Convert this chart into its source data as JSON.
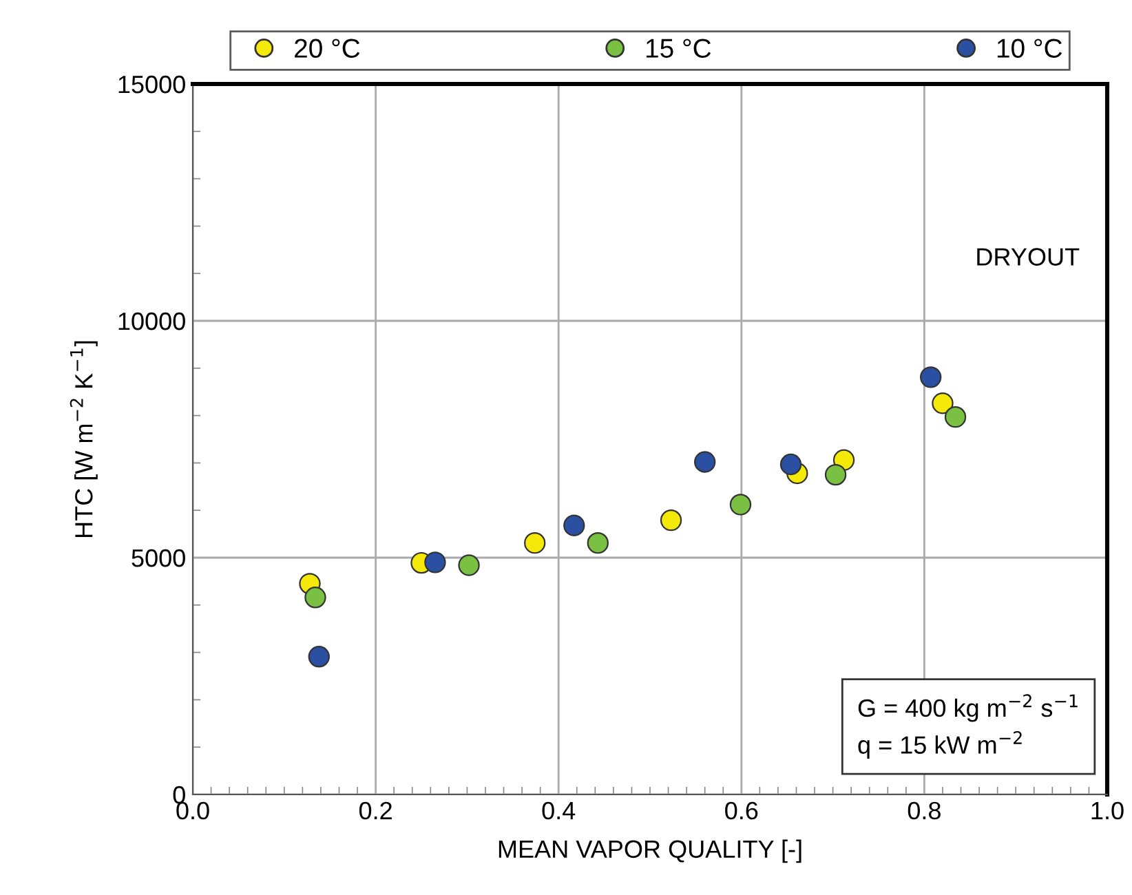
{
  "chart_data": {
    "type": "scatter",
    "xlabel": "MEAN VAPOR QUALITY [-]",
    "ylabel": "HTC [W m$^{−2}$ K$^{−1}$]",
    "xlim": [
      0,
      1
    ],
    "xticks": [
      {
        "value": 0,
        "label": "0.0"
      },
      0.2,
      0.4,
      0.6,
      0.8,
      {
        "value": 1,
        "label": "1.0"
      }
    ],
    "ylim": [
      0,
      15000
    ],
    "yticks": [
      0,
      5000,
      10000,
      15000
    ],
    "grid": true,
    "legend": "top",
    "marker": "circle",
    "annotations": [
      "DRYOUT",
      "G = 400 kg m$^{−2}$ s$^{−1}$\nq = 15 kW m$^{−2}$"
    ],
    "series": [
      {
        "name": "20 °C",
        "color": "#f5e90a",
        "x": [
          0.128,
          0.25,
          0.374,
          0.523,
          0.661,
          0.712,
          0.82
        ],
        "values": [
          4450,
          4890,
          5310,
          5790,
          6780,
          7060,
          8260
        ]
      },
      {
        "name": "15 °C",
        "color": "#7ac143",
        "x": [
          0.134,
          0.302,
          0.443,
          0.599,
          0.703,
          0.834
        ],
        "values": [
          4160,
          4840,
          5310,
          6120,
          6750,
          7970
        ]
      },
      {
        "name": "10 °C",
        "color": "#2b4fa1",
        "x": [
          0.138,
          0.265,
          0.417,
          0.56,
          0.654,
          0.807
        ],
        "values": [
          2910,
          4900,
          5680,
          7020,
          6970,
          8810
        ]
      }
    ]
  }
}
